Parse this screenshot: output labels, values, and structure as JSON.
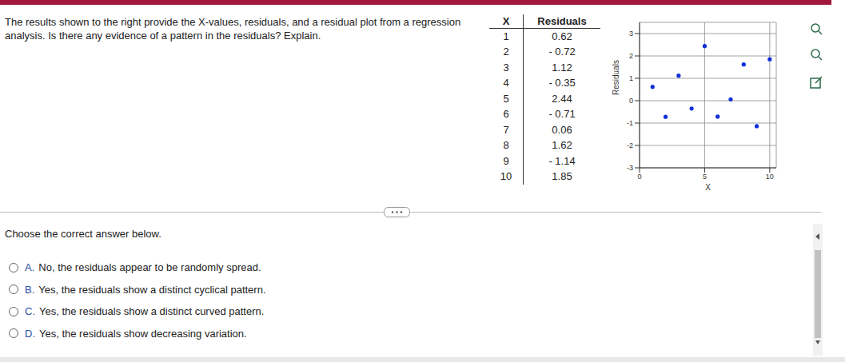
{
  "question": "The results shown to the right provide the X-values, residuals, and a residual plot from a regression analysis. Is there any evidence of a pattern in the residuals? Explain.",
  "table": {
    "header": [
      "X",
      "Residuals"
    ],
    "rows": [
      [
        "1",
        "0.62"
      ],
      [
        "2",
        "- 0.72"
      ],
      [
        "3",
        "1.12"
      ],
      [
        "4",
        "- 0.35"
      ],
      [
        "5",
        "2.44"
      ],
      [
        "6",
        "- 0.71"
      ],
      [
        "7",
        "0.06"
      ],
      [
        "8",
        "1.62"
      ],
      [
        "9",
        "- 1.14"
      ],
      [
        "10",
        "1.85"
      ]
    ]
  },
  "chart_data": {
    "type": "scatter",
    "x": [
      1,
      2,
      3,
      4,
      5,
      6,
      7,
      8,
      9,
      10
    ],
    "values": [
      0.62,
      -0.72,
      1.12,
      -0.35,
      2.44,
      -0.71,
      0.06,
      1.62,
      -1.14,
      1.85
    ],
    "xlabel": "X",
    "ylabel": "Residuals",
    "xlim": [
      0,
      10.5
    ],
    "ylim": [
      -3,
      3.5
    ],
    "xticks": [
      0,
      5,
      10
    ],
    "yticks": [
      -3,
      -2,
      -1,
      0,
      1,
      2,
      3
    ],
    "grid": true,
    "color": "#1030d8",
    "marker": "circle"
  },
  "prompt": "Choose the correct answer below.",
  "choices": [
    {
      "letter": "A.",
      "text": "No, the residuals appear to be randomly spread."
    },
    {
      "letter": "B.",
      "text": "Yes, the residuals show a distinct cyclical pattern."
    },
    {
      "letter": "C.",
      "text": "Yes, the residuals show a distinct curved pattern."
    },
    {
      "letter": "D.",
      "text": "Yes, the residuals show decreasing variation."
    }
  ]
}
